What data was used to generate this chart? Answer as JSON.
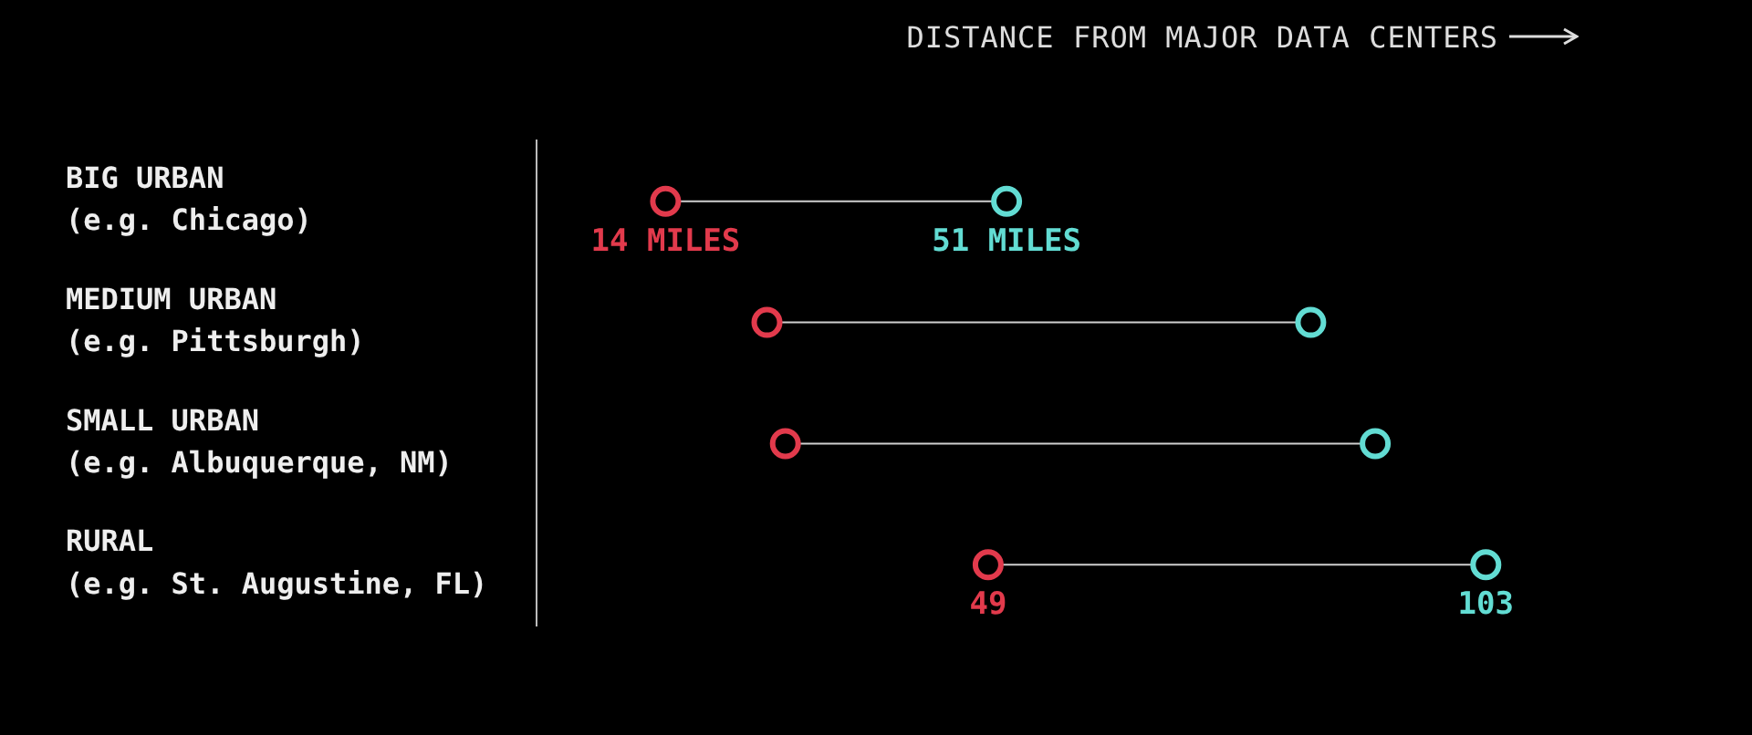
{
  "chart_data": {
    "type": "scatter",
    "xlabel": "DISTANCE FROM MAJOR DATA CENTERS",
    "categories": [
      "BIG URBAN\n(e.g. Chicago)",
      "MEDIUM URBAN\n(e.g. Pittsburgh)",
      "SMALL URBAN\n(e.g. Albuquerque, NM)",
      "RURAL\n(e.g. St. Augustine, FL)"
    ],
    "orientation": "horizontal",
    "marker": "circle",
    "legend": false,
    "series": [
      {
        "color": "#e23a4c",
        "values": [
          14,
          25,
          27,
          49
        ],
        "value_labels": [
          "14 MILES",
          null,
          null,
          "49"
        ]
      },
      {
        "color": "#62dcd3",
        "values": [
          51,
          84,
          91,
          103
        ],
        "value_labels": [
          "51 MILES",
          null,
          null,
          "103"
        ]
      }
    ]
  }
}
